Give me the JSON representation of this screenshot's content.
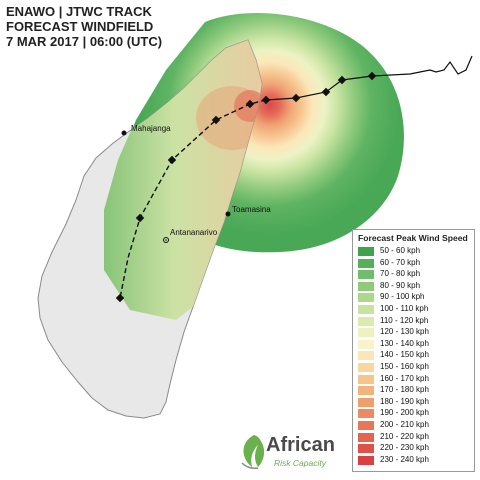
{
  "title": {
    "line1": "ENAWO  | JTWC TRACK",
    "line2": "FORECAST WINDFIELD",
    "line3": "7 MAR 2017  | 06:00 (UTC)"
  },
  "cities": [
    {
      "name": "Mahajanga"
    },
    {
      "name": "Toamasina"
    },
    {
      "name": "Antananarivo"
    }
  ],
  "legend": {
    "title": "Forecast Peak Wind Speed",
    "items": [
      {
        "label": "50 - 60 kph",
        "color": "#3fa34d"
      },
      {
        "label": "60 - 70 kph",
        "color": "#56b05a"
      },
      {
        "label": "70 - 80 kph",
        "color": "#72bd6a"
      },
      {
        "label": "80 - 90 kph",
        "color": "#8fca7a"
      },
      {
        "label": "90 - 100 kph",
        "color": "#aed78d"
      },
      {
        "label": "100 - 110 kph",
        "color": "#c7e39e"
      },
      {
        "label": "110 - 120 kph",
        "color": "#dbebb0"
      },
      {
        "label": "120 - 130 kph",
        "color": "#ecf2c2"
      },
      {
        "label": "130 - 140 kph",
        "color": "#f8f3cc"
      },
      {
        "label": "140 - 150 kph",
        "color": "#fbe6b6"
      },
      {
        "label": "150 - 160 kph",
        "color": "#f9d7a0"
      },
      {
        "label": "160 - 170 kph",
        "color": "#f6c58c"
      },
      {
        "label": "170 - 180 kph",
        "color": "#f3b37c"
      },
      {
        "label": "180 - 190 kph",
        "color": "#ef9f6e"
      },
      {
        "label": "190 - 200 kph",
        "color": "#eb8b63"
      },
      {
        "label": "200 - 210 kph",
        "color": "#e77759"
      },
      {
        "label": "210 - 220 kph",
        "color": "#e36450"
      },
      {
        "label": "220 - 230 kph",
        "color": "#de5149"
      },
      {
        "label": "230 - 240 kph",
        "color": "#d93f43"
      }
    ]
  },
  "logo": {
    "name": "African",
    "subtitle": "Risk Capacity"
  },
  "colors": {
    "sea": "#ffffff",
    "land": "#e8e8e8",
    "coast": "#8a8a8a",
    "track": "#111111",
    "logo_green": "#6ab04c"
  }
}
